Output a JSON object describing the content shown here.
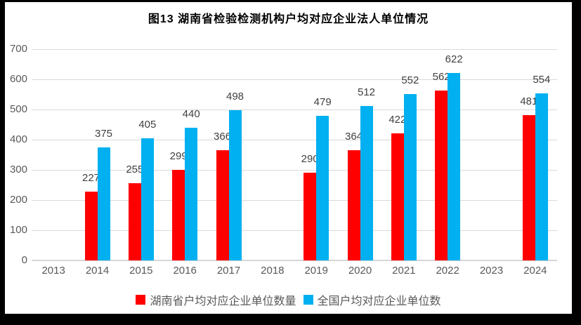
{
  "chart_data": {
    "type": "bar",
    "title": "图13 湖南省检验检测机构户均对应企业法人单位情况",
    "categories": [
      "2013",
      "2014",
      "2015",
      "2016",
      "2017",
      "2018",
      "2019",
      "2020",
      "2021",
      "2022",
      "2023",
      "2024"
    ],
    "series": [
      {
        "name": "湖南省户均对应企业单位数量",
        "color": "#ff0000",
        "values": [
          null,
          227,
          255,
          299,
          366,
          null,
          290,
          364,
          422,
          562,
          null,
          481
        ]
      },
      {
        "name": "全国户均对应企业单位数",
        "color": "#00b0f0",
        "values": [
          null,
          375,
          405,
          440,
          498,
          null,
          479,
          512,
          552,
          622,
          null,
          554
        ]
      }
    ],
    "xlabel": "",
    "ylabel": "",
    "ylim": [
      0,
      700
    ],
    "yticks": [
      0,
      100,
      200,
      300,
      400,
      500,
      600,
      700
    ],
    "grid": true,
    "legend_position": "bottom",
    "colors": {
      "gridline": "#d9d9d9",
      "tick_text": "#595959",
      "data_label": "#404040",
      "frame": "#000000",
      "background": "#ffffff"
    }
  }
}
